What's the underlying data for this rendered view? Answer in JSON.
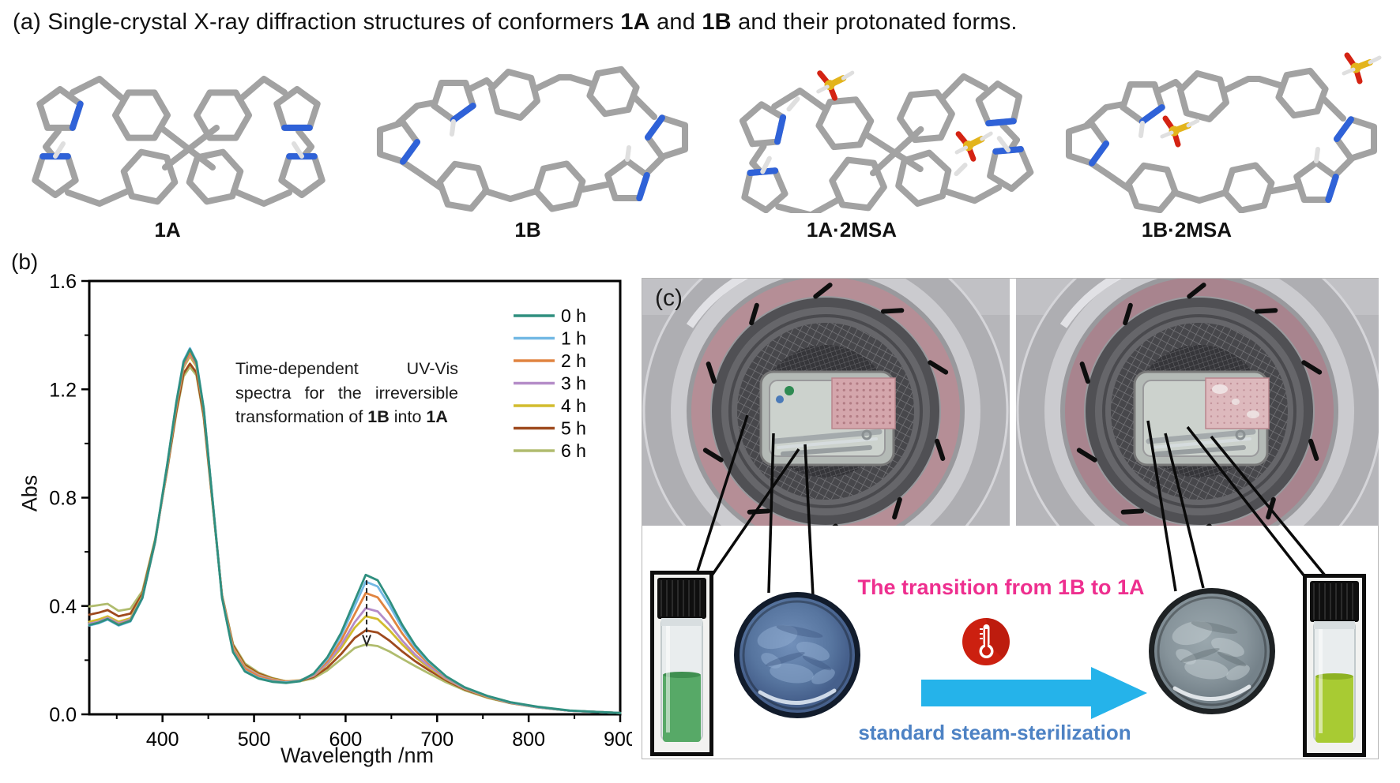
{
  "figure": {
    "title_segments": [
      {
        "text": "(a) ",
        "bold": false
      },
      {
        "text": "Single-crystal X-ray diffraction structures of conformers ",
        "bold": false
      },
      {
        "text": "1A",
        "bold": true
      },
      {
        "text": " and ",
        "bold": false
      },
      {
        "text": "1B",
        "bold": true
      },
      {
        "text": " and their protonated forms.",
        "bold": false
      }
    ]
  },
  "panel_a": {
    "structures": [
      {
        "label": "1A"
      },
      {
        "label": "1B"
      },
      {
        "label": "1A·2MSA"
      },
      {
        "label": "1B·2MSA"
      }
    ]
  },
  "panel_b": {
    "label": "(b)",
    "annotation_segments": [
      {
        "text": "Time-dependent UV-Vis spectra for the irreversible transformation of ",
        "bold": false
      },
      {
        "text": "1B",
        "bold": true
      },
      {
        "text": " into ",
        "bold": false
      },
      {
        "text": "1A",
        "bold": true
      }
    ]
  },
  "chart_data": {
    "type": "line",
    "title": "",
    "xlabel": "Wavelength /nm",
    "ylabel": "Abs",
    "xlim": [
      320,
      900
    ],
    "ylim": [
      0,
      1.6
    ],
    "xticks": [
      400,
      500,
      600,
      700,
      800,
      900
    ],
    "xticks_minor": [
      350,
      450,
      550,
      650,
      750,
      850
    ],
    "yticks": [
      0.0,
      0.4,
      0.8,
      1.2,
      1.6
    ],
    "ytick_labels": [
      "0.0",
      "0.4",
      "0.8",
      "1.2",
      "1.6"
    ],
    "yticks_minor": [
      0.2,
      0.6,
      1.0,
      1.4
    ],
    "grid": false,
    "legend_position": "top-right-inside",
    "x": [
      320,
      330,
      340,
      352,
      365,
      378,
      392,
      405,
      415,
      423,
      430,
      437,
      445,
      455,
      465,
      477,
      490,
      505,
      520,
      535,
      550,
      565,
      580,
      595,
      610,
      622,
      635,
      648,
      662,
      676,
      690,
      710,
      730,
      755,
      780,
      810,
      845,
      900
    ],
    "series": [
      {
        "name": "0 h",
        "color": "#2f8f7f",
        "values": [
          0.33,
          0.338,
          0.352,
          0.33,
          0.345,
          0.43,
          0.64,
          0.92,
          1.15,
          1.3,
          1.348,
          1.3,
          1.13,
          0.78,
          0.43,
          0.23,
          0.158,
          0.132,
          0.12,
          0.116,
          0.122,
          0.15,
          0.21,
          0.3,
          0.42,
          0.515,
          0.495,
          0.42,
          0.33,
          0.255,
          0.2,
          0.14,
          0.1,
          0.068,
          0.045,
          0.028,
          0.014,
          0.005
        ]
      },
      {
        "name": "1 h",
        "color": "#72b8e4",
        "values": [
          0.328,
          0.336,
          0.35,
          0.328,
          0.343,
          0.428,
          0.638,
          0.918,
          1.152,
          1.305,
          1.352,
          1.304,
          1.132,
          0.782,
          0.432,
          0.232,
          0.16,
          0.134,
          0.122,
          0.118,
          0.124,
          0.148,
          0.205,
          0.29,
          0.4,
          0.49,
          0.472,
          0.402,
          0.318,
          0.248,
          0.196,
          0.138,
          0.099,
          0.067,
          0.044,
          0.027,
          0.013,
          0.005
        ]
      },
      {
        "name": "2 h",
        "color": "#e08440",
        "values": [
          0.33,
          0.338,
          0.352,
          0.332,
          0.346,
          0.43,
          0.636,
          0.912,
          1.142,
          1.292,
          1.336,
          1.294,
          1.126,
          0.78,
          0.435,
          0.24,
          0.168,
          0.14,
          0.126,
          0.12,
          0.125,
          0.146,
          0.196,
          0.272,
          0.37,
          0.448,
          0.432,
          0.372,
          0.298,
          0.236,
          0.19,
          0.136,
          0.098,
          0.066,
          0.044,
          0.027,
          0.013,
          0.005
        ]
      },
      {
        "name": "3 h",
        "color": "#b48cc8",
        "values": [
          0.335,
          0.342,
          0.356,
          0.336,
          0.35,
          0.432,
          0.636,
          0.91,
          1.138,
          1.286,
          1.33,
          1.29,
          1.124,
          0.778,
          0.436,
          0.244,
          0.172,
          0.143,
          0.128,
          0.121,
          0.125,
          0.143,
          0.188,
          0.255,
          0.34,
          0.392,
          0.38,
          0.332,
          0.272,
          0.22,
          0.18,
          0.132,
          0.096,
          0.065,
          0.043,
          0.026,
          0.013,
          0.005
        ]
      },
      {
        "name": "4 h",
        "color": "#d2bc2e",
        "values": [
          0.342,
          0.35,
          0.362,
          0.342,
          0.355,
          0.435,
          0.637,
          0.908,
          1.134,
          1.28,
          1.322,
          1.284,
          1.12,
          0.776,
          0.438,
          0.248,
          0.176,
          0.146,
          0.13,
          0.122,
          0.126,
          0.142,
          0.184,
          0.244,
          0.32,
          0.362,
          0.352,
          0.31,
          0.258,
          0.212,
          0.175,
          0.13,
          0.095,
          0.064,
          0.043,
          0.026,
          0.013,
          0.005
        ]
      },
      {
        "name": "5 h",
        "color": "#9e4a1e",
        "values": [
          0.368,
          0.375,
          0.385,
          0.362,
          0.372,
          0.445,
          0.642,
          0.902,
          1.118,
          1.258,
          1.295,
          1.262,
          1.104,
          0.77,
          0.44,
          0.255,
          0.182,
          0.15,
          0.132,
          0.122,
          0.124,
          0.138,
          0.172,
          0.222,
          0.282,
          0.31,
          0.302,
          0.272,
          0.232,
          0.196,
          0.165,
          0.125,
          0.092,
          0.063,
          0.042,
          0.026,
          0.013,
          0.005
        ]
      },
      {
        "name": "6 h",
        "color": "#b0bc6e",
        "values": [
          0.398,
          0.403,
          0.408,
          0.382,
          0.39,
          0.455,
          0.648,
          0.898,
          1.11,
          1.248,
          1.283,
          1.252,
          1.096,
          0.766,
          0.442,
          0.26,
          0.188,
          0.154,
          0.134,
          0.122,
          0.122,
          0.133,
          0.162,
          0.203,
          0.245,
          0.258,
          0.252,
          0.232,
          0.205,
          0.178,
          0.153,
          0.118,
          0.089,
          0.061,
          0.041,
          0.025,
          0.013,
          0.005
        ]
      }
    ],
    "annotation_arrow": {
      "x": 623,
      "y_from": 0.495,
      "y_to": 0.255,
      "style": "dashed"
    }
  },
  "panel_c": {
    "label": "(c)",
    "transition_text": "The transition from 1B to 1A",
    "transition_text_color": "#ee2f8f",
    "process_text": "standard steam-sterilization",
    "process_text_color": "#4d82c4",
    "arrow_color": "#25b3ea",
    "thermometer_icon_color": "#cc2010",
    "items": [
      {
        "name": "green-solution-vial"
      },
      {
        "name": "blue-gel-disc"
      },
      {
        "name": "gray-gel-disc"
      },
      {
        "name": "yellow-green-solution-vial"
      }
    ]
  }
}
